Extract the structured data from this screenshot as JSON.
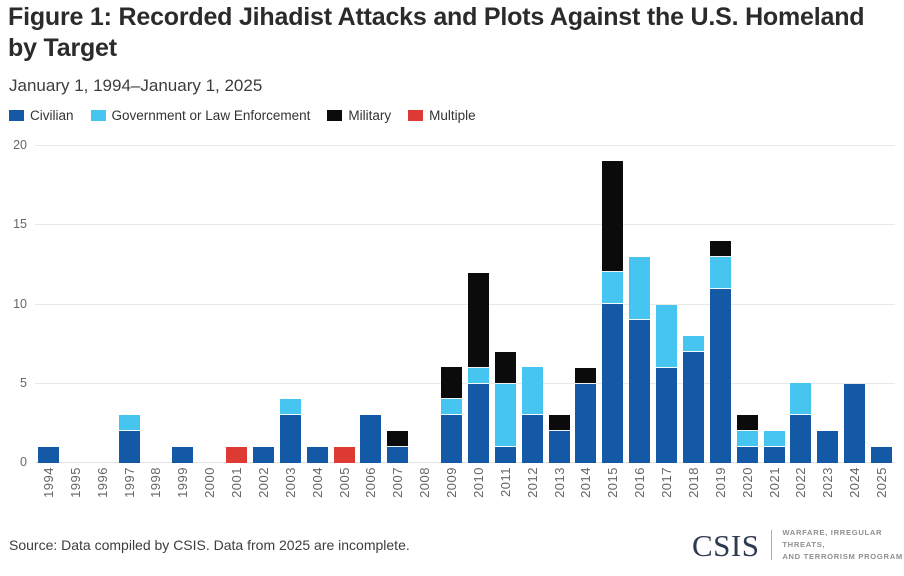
{
  "header": {
    "title": "Figure 1: Recorded Jihadist Attacks and Plots Against the U.S. Homeland by Target",
    "subtitle": "January 1, 1994–January 1, 2025"
  },
  "chart_data": {
    "type": "bar",
    "stacked": true,
    "title": "Figure 1: Recorded Jihadist Attacks and Plots Against the U.S. Homeland by Target",
    "subtitle": "January 1, 1994–January 1, 2025",
    "categories": [
      "1994",
      "1995",
      "1996",
      "1997",
      "1998",
      "1999",
      "2000",
      "2001",
      "2002",
      "2003",
      "2004",
      "2005",
      "2006",
      "2007",
      "2008",
      "2009",
      "2010",
      "2011",
      "2012",
      "2013",
      "2014",
      "2015",
      "2016",
      "2017",
      "2018",
      "2019",
      "2020",
      "2021",
      "2022",
      "2023",
      "2024",
      "2025"
    ],
    "series": [
      {
        "name": "Civilian",
        "color": "#1459a5",
        "values": [
          1,
          0,
          0,
          2,
          0,
          1,
          0,
          0,
          1,
          3,
          1,
          0,
          3,
          1,
          0,
          3,
          5,
          1,
          3,
          2,
          5,
          10,
          9,
          6,
          7,
          11,
          1,
          1,
          3,
          2,
          5,
          1
        ]
      },
      {
        "name": "Government or Law Enforcement",
        "color": "#45c5f0",
        "values": [
          0,
          0,
          0,
          1,
          0,
          0,
          0,
          0,
          0,
          1,
          0,
          0,
          0,
          0,
          0,
          1,
          1,
          4,
          3,
          0,
          0,
          2,
          4,
          4,
          1,
          2,
          1,
          1,
          2,
          0,
          0,
          0
        ]
      },
      {
        "name": "Military",
        "color": "#0b0b0b",
        "values": [
          0,
          0,
          0,
          0,
          0,
          0,
          0,
          0,
          0,
          0,
          0,
          0,
          0,
          1,
          0,
          2,
          6,
          2,
          0,
          1,
          1,
          7,
          0,
          0,
          0,
          1,
          1,
          0,
          0,
          0,
          0,
          0
        ]
      },
      {
        "name": "Multiple",
        "color": "#dc3a32",
        "values": [
          0,
          0,
          0,
          0,
          0,
          0,
          0,
          1,
          0,
          0,
          0,
          1,
          0,
          0,
          0,
          0,
          0,
          0,
          0,
          0,
          0,
          0,
          0,
          0,
          0,
          0,
          0,
          0,
          0,
          0,
          0,
          0
        ]
      }
    ],
    "xlabel": "",
    "ylabel": "",
    "ylim": [
      0,
      20
    ],
    "yticks": [
      0,
      5,
      10,
      15,
      20
    ],
    "grid": true,
    "legend_position": "top"
  },
  "footer": {
    "source": "Source: Data compiled by CSIS. Data from 2025 are incomplete.",
    "logo_text": "CSIS",
    "program_line1": "WARFARE, IRREGULAR THREATS,",
    "program_line2": "AND TERRORISM PROGRAM"
  }
}
